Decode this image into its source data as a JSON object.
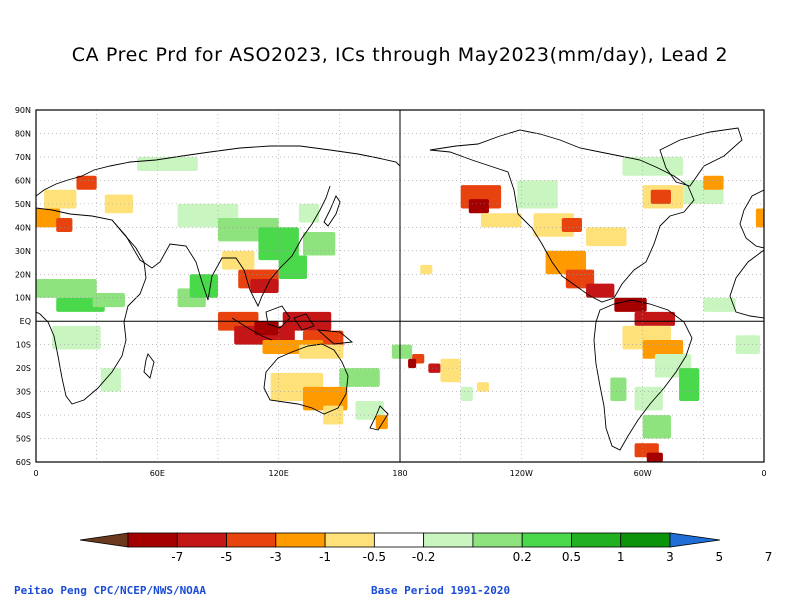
{
  "title": "CA Prec Prd for ASO2023, ICs through May2023(mm/day), Lead 2",
  "map": {
    "lat_labels": [
      "90N",
      "80N",
      "70N",
      "60N",
      "50N",
      "40N",
      "30N",
      "20N",
      "10N",
      "EQ",
      "10S",
      "20S",
      "30S",
      "40S",
      "50S",
      "60S"
    ],
    "lon_labels": [
      "0",
      "60E",
      "120E",
      "180",
      "120W",
      "60W",
      "0"
    ],
    "lon_range": [
      0,
      360
    ],
    "lat_range": [
      -60,
      90
    ],
    "grid": "dotted"
  },
  "colorbar": {
    "labels": [
      "-7",
      "-5",
      "-3",
      "-1",
      "-0.5",
      "-0.2",
      "0.2",
      "0.5",
      "1",
      "3",
      "5",
      "7"
    ],
    "colors": [
      "#6b3a1e",
      "#a50000",
      "#c41616",
      "#e8420f",
      "#ff9a00",
      "#ffe17a",
      "#ffffff",
      "#c9f5c0",
      "#8fe37f",
      "#4ad94a",
      "#20b020",
      "#0b940b",
      "#1f6fd6"
    ]
  },
  "footer": {
    "left": "Peitao Peng CPC/NCEP/NWS/NOAA",
    "right": "Base Period 1991-2020"
  }
}
